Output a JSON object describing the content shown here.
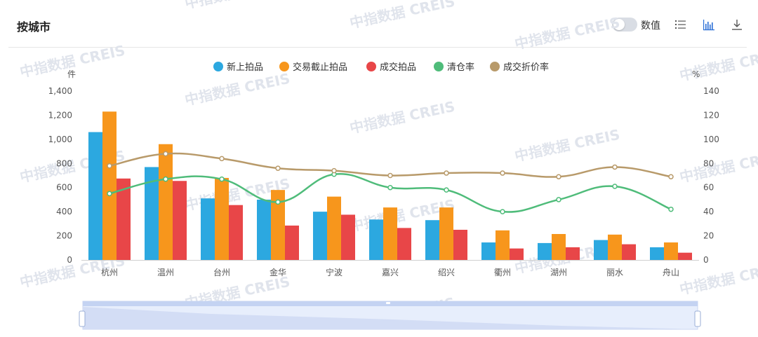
{
  "header": {
    "title": "按城市",
    "toggle_label": "数值"
  },
  "watermark": "中指数据 CREIS",
  "colors": {
    "new_listing": "#2ca8e0",
    "deadline": "#f7961c",
    "deal": "#e84648",
    "clear_rate": "#4fbc7a",
    "discount_rate": "#b89a6a"
  },
  "chart_data": {
    "type": "bar",
    "categories": [
      "杭州",
      "温州",
      "台州",
      "金华",
      "宁波",
      "嘉兴",
      "绍兴",
      "衢州",
      "湖州",
      "丽水",
      "舟山"
    ],
    "series": [
      {
        "name": "新上拍品",
        "type": "bar",
        "axis": "left",
        "values": [
          1060,
          770,
          510,
          500,
          400,
          335,
          330,
          145,
          140,
          165,
          105
        ]
      },
      {
        "name": "交易截止拍品",
        "type": "bar",
        "axis": "left",
        "values": [
          1230,
          960,
          680,
          580,
          525,
          435,
          435,
          245,
          215,
          210,
          145
        ]
      },
      {
        "name": "成交拍品",
        "type": "bar",
        "axis": "left",
        "values": [
          675,
          655,
          455,
          285,
          375,
          265,
          250,
          95,
          105,
          130,
          60
        ]
      },
      {
        "name": "清仓率",
        "type": "line",
        "axis": "right",
        "values": [
          55,
          67,
          67,
          48,
          71,
          60,
          58,
          40,
          50,
          61,
          42
        ]
      },
      {
        "name": "成交折价率",
        "type": "line",
        "axis": "right",
        "values": [
          78,
          88,
          84,
          76,
          74,
          70,
          72,
          72,
          69,
          77,
          69
        ]
      }
    ],
    "y_left": {
      "label": "件",
      "min": 0,
      "max": 1400,
      "ticks": [
        "0",
        "200",
        "400",
        "600",
        "800",
        "1,000",
        "1,200",
        "1,400"
      ]
    },
    "y_right": {
      "label": "%",
      "min": 0,
      "max": 140,
      "ticks": [
        "0",
        "20",
        "40",
        "60",
        "80",
        "100",
        "120",
        "140"
      ]
    },
    "legend_position": "top-center",
    "grid": false,
    "data_zoom": true
  }
}
